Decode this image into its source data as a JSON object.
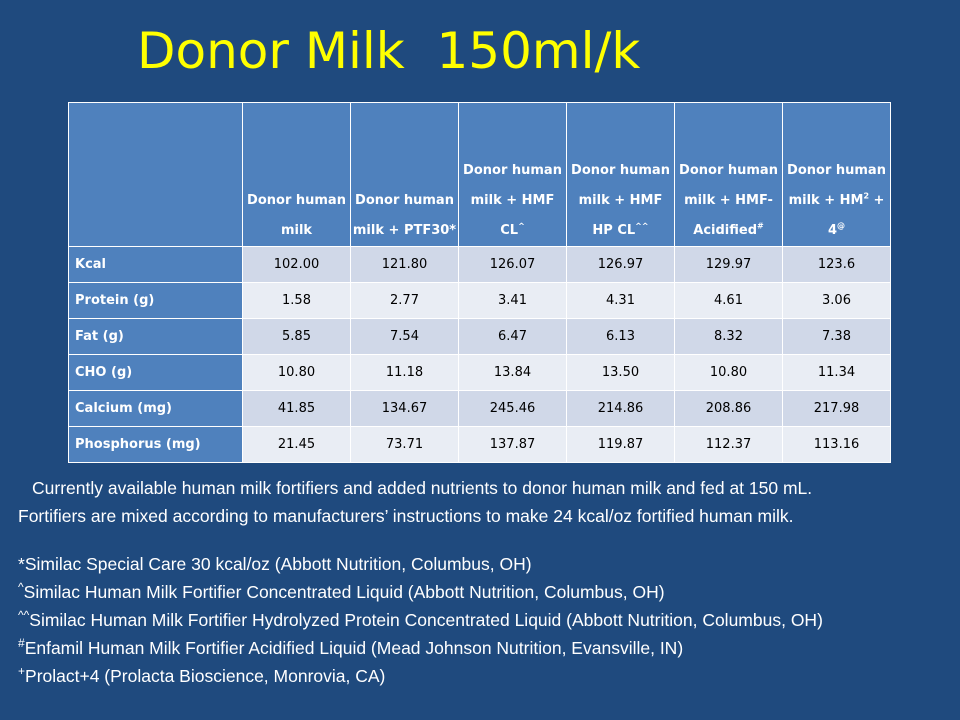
{
  "title": "Donor Milk  150ml/k",
  "table": {
    "headers": [
      {
        "text": ""
      },
      {
        "text": "Donor human milk",
        "sup": ""
      },
      {
        "text": "Donor human milk + PTF30*",
        "sup": ""
      },
      {
        "text": "Donor human milk + HMF CL",
        "sup": "^"
      },
      {
        "text": "Donor human milk + HMF HP CL",
        "sup": "^^"
      },
      {
        "text": "Donor human milk + HMF-Acidified",
        "sup": "#"
      },
      {
        "text": "Donor human milk + HM",
        "sup": "2",
        "tail": " + 4",
        "sup2": "@"
      }
    ],
    "rows": [
      {
        "label": "Kcal",
        "values": [
          "102.00",
          "121.80",
          "126.07",
          "126.97",
          "129.97",
          "123.6"
        ]
      },
      {
        "label": "Protein (g)",
        "values": [
          "1.58",
          "2.77",
          "3.41",
          "4.31",
          "4.61",
          "3.06"
        ]
      },
      {
        "label": "Fat (g)",
        "values": [
          "5.85",
          "7.54",
          "6.47",
          "6.13",
          "8.32",
          "7.38"
        ]
      },
      {
        "label": "CHO (g)",
        "values": [
          "10.80",
          "11.18",
          "13.84",
          "13.50",
          "10.80",
          "11.34"
        ]
      },
      {
        "label": "Calcium  (mg)",
        "values": [
          "41.85",
          "134.67",
          "245.46",
          "214.86",
          "208.86",
          "217.98"
        ]
      },
      {
        "label": "Phosphorus  (mg)",
        "values": [
          "21.45",
          "73.71",
          "137.87",
          "119.87",
          "112.37",
          "113.16"
        ]
      }
    ]
  },
  "notes": {
    "line1": "Currently available human milk fortifiers and added nutrients to donor human milk and fed at 150 mL.",
    "line2": "Fortifiers are mixed according to manufacturers’ instructions to make 24 kcal/oz fortified human milk.",
    "footnotes": [
      {
        "symbol": "*",
        "text": "Similac Special Care 30 kcal/oz (Abbott Nutrition, Columbus, OH)"
      },
      {
        "symbol": "^",
        "text": "Similac Human Milk Fortifier Concentrated Liquid (Abbott Nutrition, Columbus, OH)"
      },
      {
        "symbol": "^^",
        "text": "Similac Human Milk Fortifier Hydrolyzed Protein Concentrated Liquid (Abbott Nutrition, Columbus, OH)"
      },
      {
        "symbol": "#",
        "text": "Enfamil Human Milk Fortifier Acidified Liquid (Mead Johnson Nutrition, Evansville, IN)"
      },
      {
        "symbol": "+",
        "text": "Prolact+4 (Prolacta Bioscience, Monrovia, CA)"
      }
    ]
  },
  "colors": {
    "background": "#1f4a7e",
    "title": "#ffff00",
    "header": "#4f81bd",
    "row_even": "#d0d8e8",
    "row_odd": "#e9edf4"
  }
}
